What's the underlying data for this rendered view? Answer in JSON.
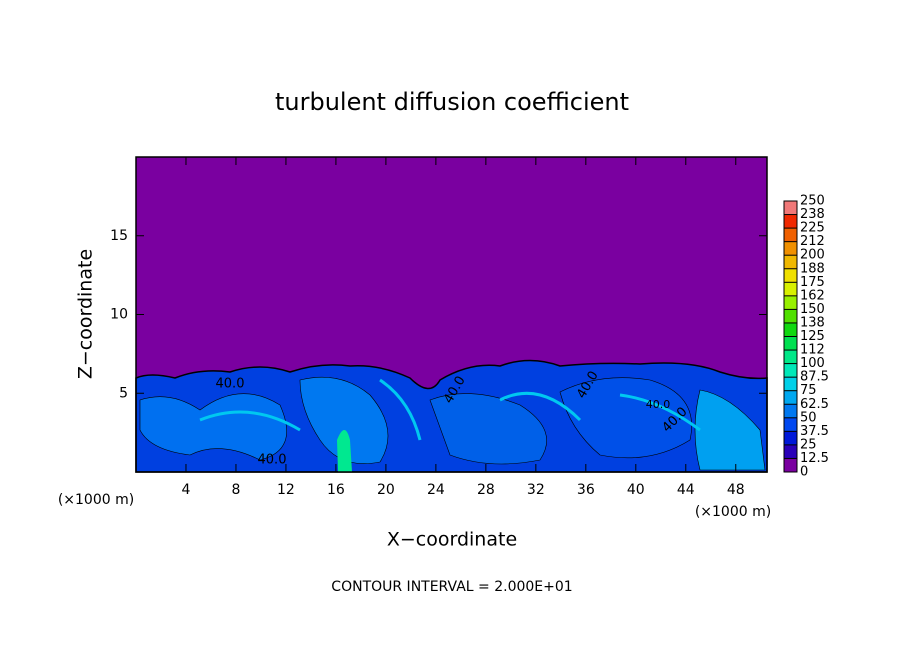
{
  "chart_data": {
    "type": "contour",
    "title": "turbulent diffusion coefficient",
    "xlabel": "X−coordinate",
    "ylabel": "Z−coordinate",
    "x_scale_label": "(×1000 m)",
    "z_scale_label": "(×1000 m)",
    "annotation": "CONTOUR INTERVAL = 2.000E+01",
    "contour_labels": [
      "40.0",
      "40.0",
      "40.0",
      "40.0",
      "40.0",
      "40.0"
    ],
    "xlim": [
      0,
      50.5
    ],
    "xticks": [
      4,
      8,
      12,
      16,
      20,
      24,
      28,
      32,
      36,
      40,
      44,
      48
    ],
    "ylim": [
      0,
      20
    ],
    "yticks": [
      5,
      10,
      15
    ],
    "colorbar": {
      "levels": [
        0,
        12.5,
        25,
        37.5,
        50,
        62.5,
        75,
        87.5,
        100,
        112,
        125,
        138,
        150,
        162,
        175,
        188,
        200,
        212,
        225,
        238,
        250
      ],
      "colors": [
        "#7a00a0",
        "#2a00b8",
        "#0018d8",
        "#0048f0",
        "#0078f0",
        "#00a8f0",
        "#00d0e8",
        "#00e8b8",
        "#00e888",
        "#00e050",
        "#10d810",
        "#50e000",
        "#98f000",
        "#d8f000",
        "#f0e000",
        "#f0b800",
        "#f09000",
        "#f06000",
        "#f02800",
        "#f07878"
      ]
    }
  }
}
